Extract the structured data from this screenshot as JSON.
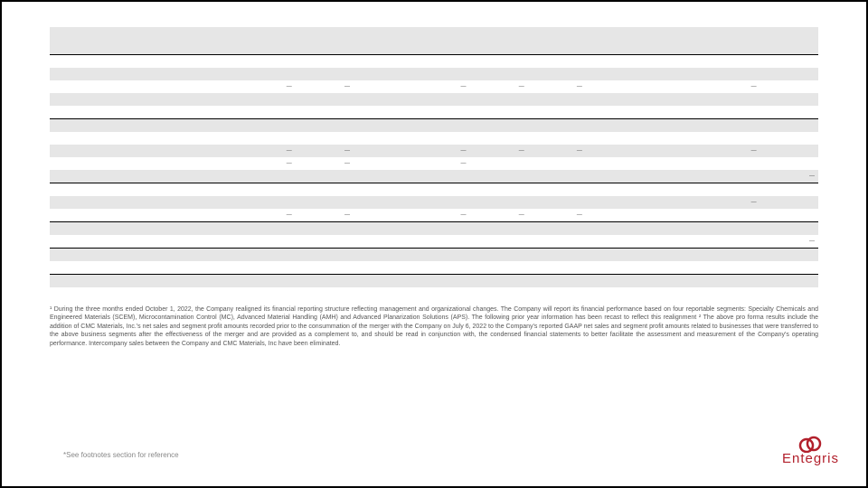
{
  "table": {
    "col_widths_pct": [
      26,
      7.4,
      7.4,
      7.4,
      7.4,
      7.4,
      7.4,
      7.4,
      7.4,
      7.4,
      7.4
    ],
    "rows": [
      {
        "cls": "headrow",
        "cells": [
          "",
          "",
          "",
          "",
          "",
          "",
          "",
          "",
          "",
          "",
          ""
        ]
      },
      {
        "cls": "",
        "cells": [
          "",
          "",
          "",
          "",
          "",
          "",
          "",
          "",
          "",
          "",
          ""
        ]
      },
      {
        "cls": "shade",
        "cells": [
          "",
          "",
          "",
          "",
          "",
          "",
          "",
          "",
          "",
          "",
          ""
        ]
      },
      {
        "cls": "",
        "cells": [
          "",
          "—",
          "—",
          "",
          "—",
          "—",
          "—",
          "",
          "",
          "—",
          ""
        ]
      },
      {
        "cls": "shade",
        "cells": [
          "",
          "",
          "",
          "",
          "",
          "",
          "",
          "",
          "",
          "",
          ""
        ]
      },
      {
        "cls": "",
        "cells": [
          "",
          "",
          "",
          "",
          "",
          "",
          "",
          "",
          "",
          "",
          ""
        ]
      },
      {
        "cls": "shade div",
        "cells": [
          "",
          "",
          "",
          "",
          "",
          "",
          "",
          "",
          "",
          "",
          ""
        ]
      },
      {
        "cls": "",
        "cells": [
          "",
          "",
          "",
          "",
          "",
          "",
          "",
          "",
          "",
          "",
          ""
        ]
      },
      {
        "cls": "shade",
        "cells": [
          "",
          "—",
          "—",
          "",
          "—",
          "—",
          "—",
          "",
          "",
          "—",
          ""
        ]
      },
      {
        "cls": "",
        "cells": [
          "",
          "—",
          "—",
          "",
          "—",
          "",
          "",
          "",
          "",
          "",
          ""
        ]
      },
      {
        "cls": "shade",
        "cells": [
          "",
          "",
          "",
          "",
          "",
          "",
          "",
          "",
          "",
          "",
          "—"
        ]
      },
      {
        "cls": "div",
        "cells": [
          "",
          "",
          "",
          "",
          "",
          "",
          "",
          "",
          "",
          "",
          ""
        ]
      },
      {
        "cls": "shade",
        "cells": [
          "",
          "",
          "",
          "",
          "",
          "",
          "",
          "",
          "",
          "—",
          ""
        ]
      },
      {
        "cls": "",
        "cells": [
          "",
          "—",
          "—",
          "",
          "—",
          "—",
          "—",
          "",
          "",
          "",
          ""
        ]
      },
      {
        "cls": "shade div",
        "cells": [
          "",
          "",
          "",
          "",
          "",
          "",
          "",
          "",
          "",
          "",
          ""
        ]
      },
      {
        "cls": "",
        "cells": [
          "",
          "",
          "",
          "",
          "",
          "",
          "",
          "",
          "",
          "",
          "—"
        ]
      },
      {
        "cls": "shade div",
        "cells": [
          "",
          "",
          "",
          "",
          "",
          "",
          "",
          "",
          "",
          "",
          ""
        ]
      },
      {
        "cls": "",
        "cells": [
          "",
          "",
          "",
          "",
          "",
          "",
          "",
          "",
          "",
          "",
          ""
        ]
      },
      {
        "cls": "shade div",
        "cells": [
          "",
          "",
          "",
          "",
          "",
          "",
          "",
          "",
          "",
          "",
          ""
        ]
      },
      {
        "cls": "",
        "cells": [
          "",
          "",
          "",
          "",
          "",
          "",
          "",
          "",
          "",
          "",
          ""
        ]
      }
    ]
  },
  "footnotes": {
    "f1": "¹ During the three months ended October 1, 2022, the Company realigned its financial reporting structure reflecting management and organizational changes.  The Company will report its financial performance based on four reportable segments: Specialty Chemicals and Engineered Materials (SCEM), Microcontamination Control (MC), Advanced Material Handling (AMH) and Advanced Planarization Solutions (APS). The following prior year information has been recast to reflect this realignment",
    "f2": " ² The above pro forma results include the addition of CMC Materials, Inc.'s net sales and segment profit amounts recorded prior to the consummation of the merger with the Company on July 6, 2022 to the Company's reported GAAP net sales and segment profit amounts related to businesses that were transferred to the above business segments after the effectiveness of the merger and are provided as a complement to, and should be read in conjunction with, the condensed financial statements to better facilitate the assessment and measurement of the Company's operating performance. Intercompany sales between the Company and CMC Materials, Inc have been eliminated."
  },
  "footer_note": "*See footnotes section for reference",
  "brand": {
    "color": "#b2202c",
    "text": "Entegris"
  }
}
